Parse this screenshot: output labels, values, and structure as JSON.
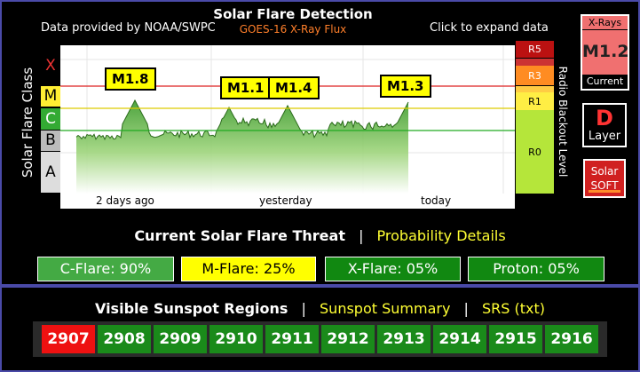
{
  "header": {
    "provider": "Data provided by NOAA/SWPC",
    "title": "Solar Flare Detection",
    "subtitle": "GOES-16 X-Ray Flux",
    "expand": "Click to expand data"
  },
  "chart_data": {
    "type": "line",
    "ylabel": "Solar Flare Class",
    "y_classes": [
      "X",
      "M",
      "C",
      "B",
      "A"
    ],
    "x_ticks": [
      "2 days ago",
      "yesterday",
      "today"
    ],
    "right_label": "Radio Blackout Level",
    "right_levels": [
      "R5",
      "R3",
      "R1",
      "R0"
    ],
    "flare_labels": [
      "M1.8",
      "M1.1",
      "M1.4",
      "M1.3"
    ],
    "thresholds": {
      "X": "#dd2222",
      "M": "#ddcc00",
      "C": "#22aa22"
    }
  },
  "widgets": {
    "xray_title": "X-Rays",
    "xray_value": "M1.2",
    "xray_caption": "Current",
    "layer_letter": "D",
    "layer_label": "Layer",
    "solar_line1": "Solar",
    "solar_line2": "SOFT"
  },
  "threat": {
    "title": "Current Solar Flare Threat",
    "separator": "|",
    "link": "Probability Details",
    "pills": [
      {
        "label": "C-Flare: 90%",
        "bg": "#44aa44",
        "fg": "#ffffff"
      },
      {
        "label": "M-Flare: 25%",
        "bg": "#ffff00",
        "fg": "#000000"
      },
      {
        "label": "X-Flare: 05%",
        "bg": "#118811",
        "fg": "#ffffff"
      },
      {
        "label": "Proton: 05%",
        "bg": "#118811",
        "fg": "#ffffff"
      }
    ]
  },
  "sunspots": {
    "title": "Visible Sunspot Regions",
    "separator": "|",
    "summary_link": "Sunspot Summary",
    "srs_link": "SRS (txt)",
    "regions": [
      "2907",
      "2908",
      "2909",
      "2910",
      "2911",
      "2912",
      "2913",
      "2914",
      "2915",
      "2916"
    ],
    "active_color": "#ee1111",
    "normal_color": "#1a8a1a"
  }
}
